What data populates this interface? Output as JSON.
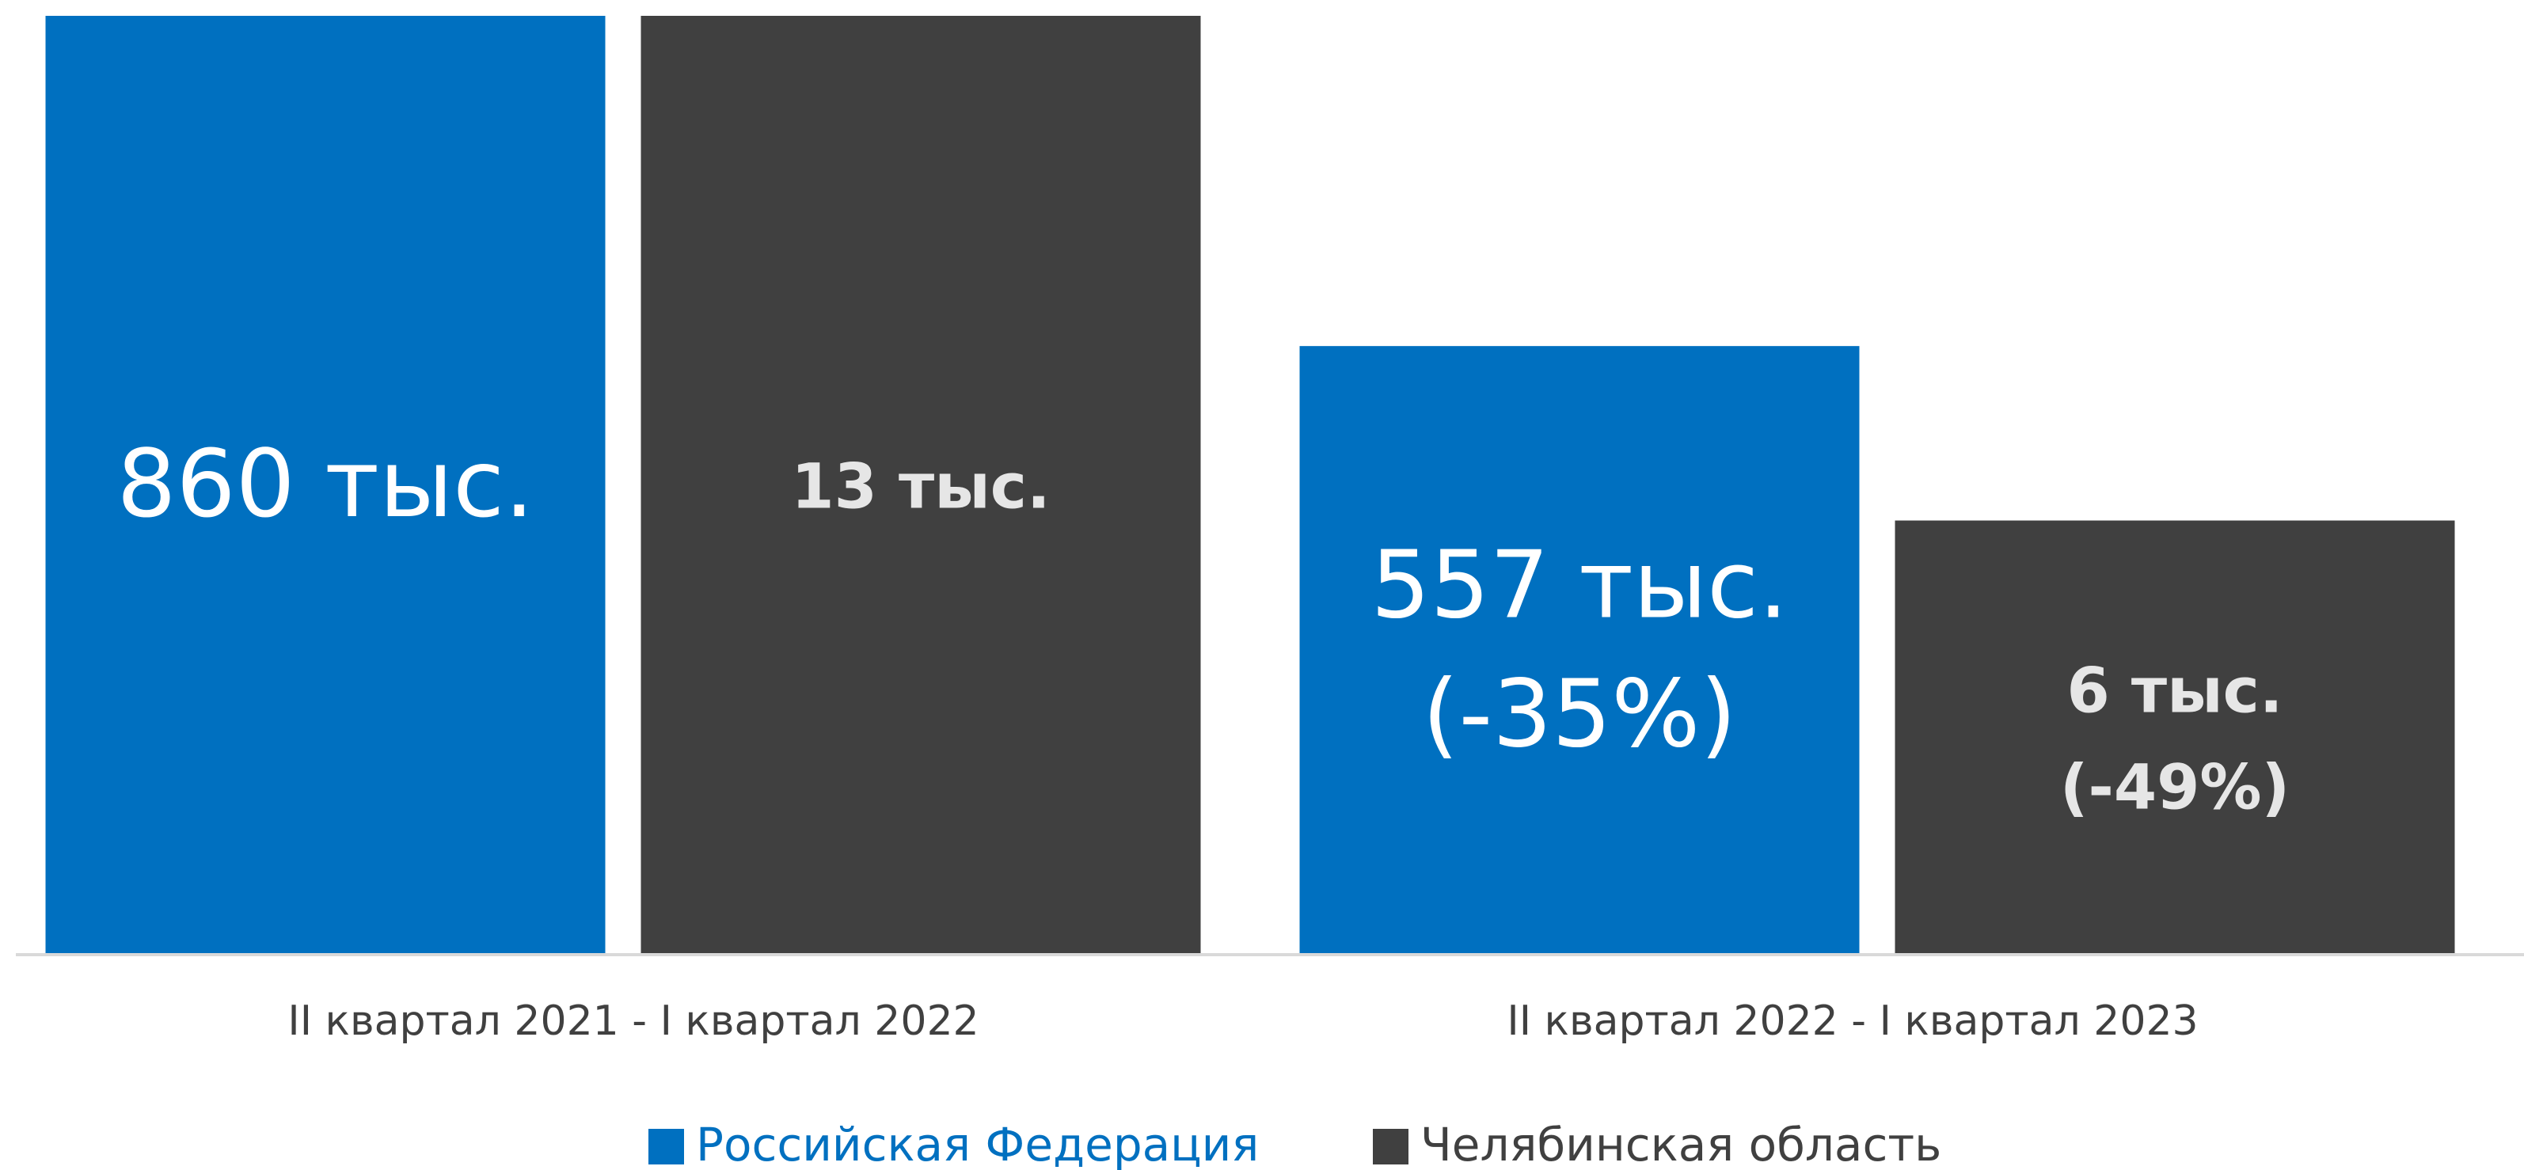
{
  "chart_data": {
    "type": "bar",
    "categories": [
      "II квартал 2021 - I квартал 2022",
      "II квартал 2022 - I квартал 2023"
    ],
    "ylim": [
      0,
      860
    ],
    "y2lim": [
      0,
      13
    ],
    "series": [
      {
        "name": "Российская Федерация",
        "color": "#0070c0",
        "values": [
          860,
          557
        ],
        "value_labels": [
          [
            "860 тыс."
          ],
          [
            "557 тыс.",
            "(-35%)"
          ]
        ]
      },
      {
        "name": "Челябинская область",
        "color": "#404040",
        "axis": "y2",
        "values": [
          13,
          6
        ],
        "value_labels": [
          [
            "13 тыс."
          ],
          [
            "6 тыс.",
            "(-49%)"
          ]
        ]
      }
    ],
    "legend": "bottom"
  }
}
